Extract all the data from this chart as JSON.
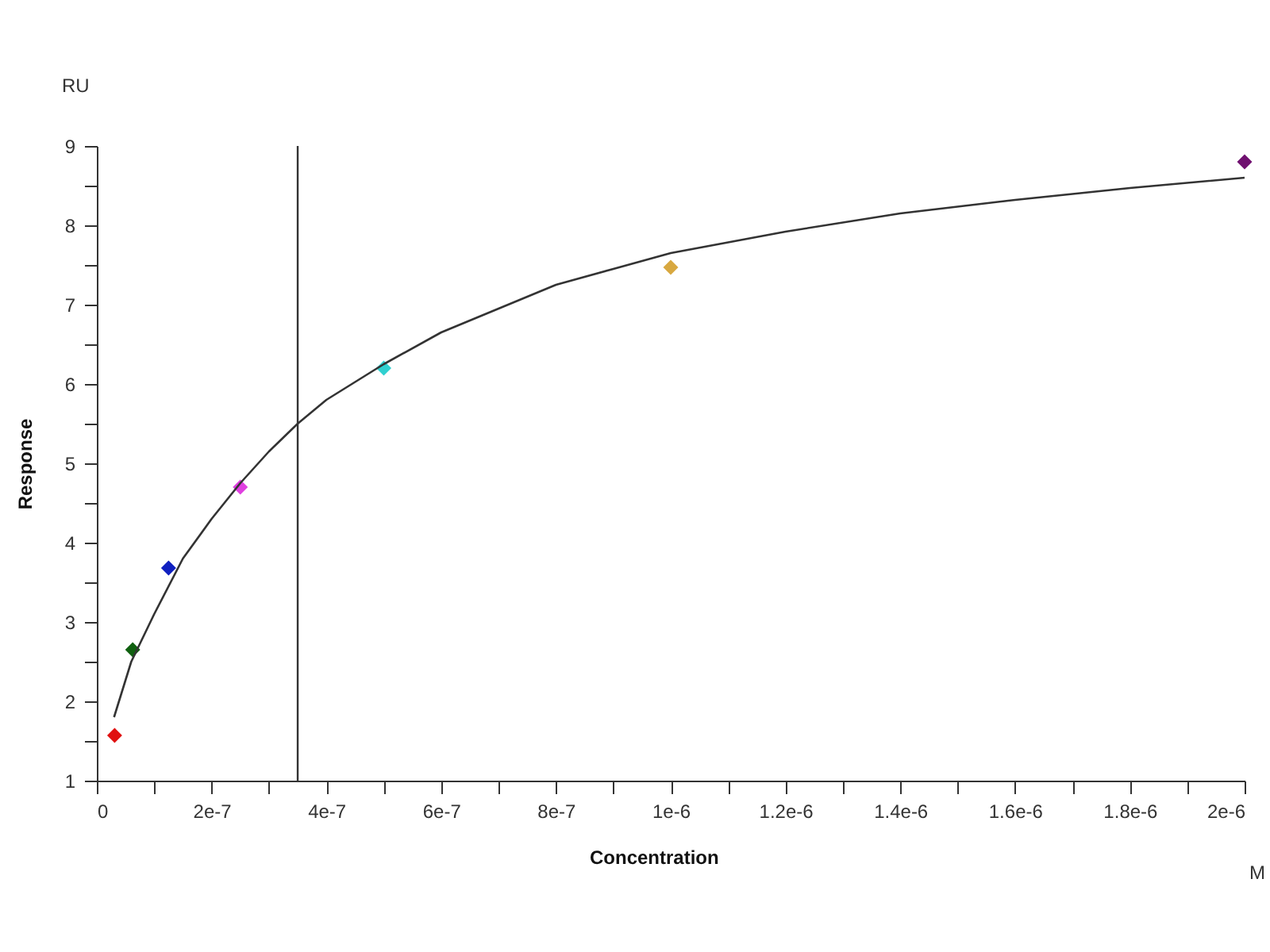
{
  "chart_data": {
    "type": "scatter",
    "xlabel": "Concentration",
    "ylabel": "Response",
    "annotations": [
      "RU",
      "M"
    ],
    "xlim": [
      0,
      2e-06
    ],
    "ylim": [
      1,
      9
    ],
    "xticks": [
      {
        "value": 0,
        "label": "0"
      },
      {
        "value": 1e-07,
        "label": null
      },
      {
        "value": 2e-07,
        "label": "2e-7"
      },
      {
        "value": 3e-07,
        "label": null
      },
      {
        "value": 4e-07,
        "label": "4e-7"
      },
      {
        "value": 5e-07,
        "label": null
      },
      {
        "value": 6e-07,
        "label": "6e-7"
      },
      {
        "value": 7e-07,
        "label": null
      },
      {
        "value": 8e-07,
        "label": "8e-7"
      },
      {
        "value": 9e-07,
        "label": null
      },
      {
        "value": 1e-06,
        "label": "1e-6"
      },
      {
        "value": 1.1e-06,
        "label": null
      },
      {
        "value": 1.2e-06,
        "label": "1.2e-6"
      },
      {
        "value": 1.3e-06,
        "label": null
      },
      {
        "value": 1.4e-06,
        "label": "1.4e-6"
      },
      {
        "value": 1.5e-06,
        "label": null
      },
      {
        "value": 1.6e-06,
        "label": "1.6e-6"
      },
      {
        "value": 1.7e-06,
        "label": null
      },
      {
        "value": 1.8e-06,
        "label": "1.8e-6"
      },
      {
        "value": 1.9e-06,
        "label": null
      },
      {
        "value": 2e-06,
        "label": "2e-6"
      }
    ],
    "yticks": [
      1,
      {
        "value": 1.5,
        "label": null
      },
      2,
      {
        "value": 2.5,
        "label": null
      },
      3,
      {
        "value": 3.5,
        "label": null
      },
      4,
      {
        "value": 4.5,
        "label": null
      },
      5,
      {
        "value": 5.5,
        "label": null
      },
      6,
      {
        "value": 6.5,
        "label": null
      },
      7,
      {
        "value": 7.5,
        "label": null
      },
      8,
      {
        "value": 8.5,
        "label": null
      },
      9
    ],
    "grid": false,
    "legend": false,
    "series": [
      {
        "marker": "diamond",
        "x": [
          3.1e-08,
          6.25e-08,
          1.25e-07,
          2.5e-07,
          5e-07,
          1e-06,
          2e-06
        ],
        "values": [
          1.57,
          2.65,
          3.68,
          4.7,
          6.2,
          7.47,
          8.8
        ],
        "colors": [
          "#e01010",
          "#106010",
          "#1020c0",
          "#e040e0",
          "#30d0d0",
          "#d8a840",
          "#701070"
        ]
      },
      {
        "type": "line",
        "marker": "none",
        "line_style": "solid",
        "color": "#333333",
        "x": [
          3e-08,
          6e-08,
          1e-07,
          1.5e-07,
          2e-07,
          2.5e-07,
          3e-07,
          3.5e-07,
          4e-07,
          5e-07,
          6e-07,
          7e-07,
          8e-07,
          9e-07,
          1e-06,
          1.2e-06,
          1.4e-06,
          1.6e-06,
          1.8e-06,
          2e-06
        ],
        "values": [
          1.8,
          2.5,
          3.1,
          3.8,
          4.3,
          4.75,
          5.15,
          5.5,
          5.8,
          6.25,
          6.65,
          6.95,
          7.25,
          7.45,
          7.65,
          7.92,
          8.15,
          8.32,
          8.47,
          8.6
        ]
      }
    ],
    "ref_lines": [
      {
        "axis": "x",
        "value": 3.5e-07,
        "color": "#333333"
      }
    ]
  }
}
